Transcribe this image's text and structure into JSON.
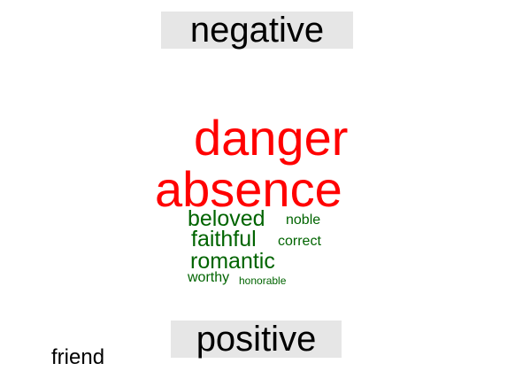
{
  "groups": {
    "negative": {
      "label": "negative",
      "color": "#ff0000",
      "words": [
        "danger",
        "absence"
      ]
    },
    "positive": {
      "label": "positive",
      "color": "#006400",
      "words": [
        "beloved",
        "noble",
        "faithful",
        "correct",
        "romantic",
        "worthy",
        "honorable"
      ]
    }
  },
  "neutral_words": [
    "friend"
  ],
  "colors": {
    "label_background": "#e6e6e6",
    "negative": "#ff0000",
    "positive": "#006400",
    "neutral": "#000000"
  }
}
